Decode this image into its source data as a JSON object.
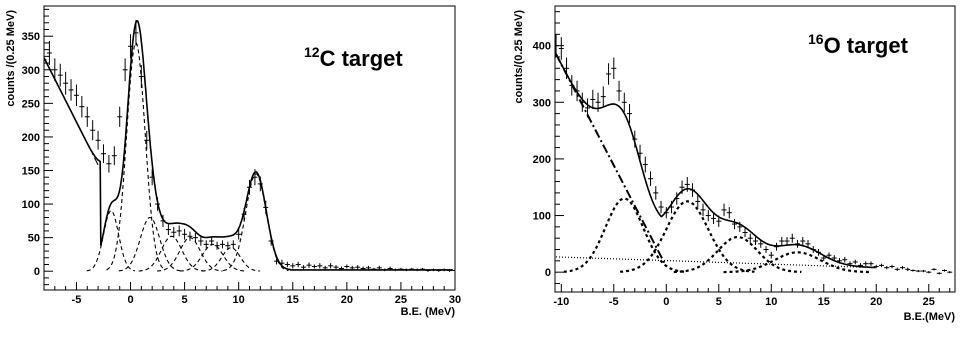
{
  "chart_data": [
    {
      "type": "line",
      "panel": "left",
      "annotation": {
        "superscript": "12",
        "text": "C target"
      },
      "xlabel": "B.E. (MeV)",
      "ylabel": "counts /(0.25 MeV)",
      "xlim": [
        -8,
        30
      ],
      "ylim": [
        -28,
        395
      ],
      "xticks": [
        -5,
        0,
        5,
        10,
        15,
        20,
        25,
        30
      ],
      "yticks": [
        0,
        50,
        100,
        150,
        200,
        250,
        300,
        350
      ],
      "data_points": {
        "x": [
          -8.0,
          -7.5,
          -7.0,
          -6.5,
          -6.0,
          -5.5,
          -5.0,
          -4.5,
          -4.0,
          -3.5,
          -3.0,
          -2.5,
          -2.0,
          -1.5,
          -1.0,
          -0.5,
          0.0,
          0.5,
          1.0,
          1.5,
          2.0,
          2.5,
          3.0,
          3.5,
          4.0,
          4.5,
          5.0,
          5.5,
          6.0,
          6.5,
          7.0,
          7.5,
          8.0,
          8.5,
          9.0,
          9.5,
          10.0,
          10.5,
          11.0,
          11.5,
          12.0,
          12.5,
          13.0,
          13.5,
          14.0,
          14.5,
          15.0,
          15.5,
          16.0,
          16.5,
          17.0,
          17.5,
          18.0,
          18.5,
          19.0,
          19.5,
          20.0,
          20.5,
          21.0,
          21.5,
          22.0,
          22.5,
          23.0,
          23.5,
          24.0,
          24.5,
          25.0,
          25.5,
          26.0,
          26.5,
          27.0,
          27.5,
          28.0,
          28.5,
          29.0,
          29.5,
          30.0
        ],
        "y": [
          315,
          325,
          300,
          292,
          280,
          270,
          262,
          245,
          230,
          210,
          195,
          175,
          160,
          172,
          230,
          300,
          335,
          355,
          290,
          195,
          140,
          100,
          75,
          62,
          58,
          60,
          55,
          52,
          50,
          45,
          40,
          45,
          38,
          40,
          38,
          40,
          55,
          85,
          125,
          140,
          130,
          95,
          45,
          15,
          12,
          10,
          8,
          10,
          6,
          9,
          7,
          8,
          5,
          8,
          6,
          4,
          7,
          5,
          6,
          4,
          5,
          3,
          5,
          2,
          4,
          2,
          3,
          2,
          3,
          2,
          3,
          1,
          2,
          1,
          2,
          1,
          1
        ],
        "errors": [
          18,
          18,
          17,
          17,
          17,
          16,
          16,
          16,
          15,
          15,
          14,
          14,
          13,
          14,
          15,
          17,
          18,
          19,
          17,
          14,
          12,
          10,
          9,
          8,
          8,
          8,
          8,
          7,
          7,
          7,
          6,
          7,
          6,
          6,
          6,
          6,
          8,
          9,
          11,
          12,
          11,
          10,
          7,
          5,
          5,
          4,
          4,
          4,
          3,
          4,
          3,
          4,
          3,
          4,
          3,
          3,
          3,
          3,
          3,
          3,
          3,
          2,
          3,
          2,
          3,
          2,
          2,
          2,
          2,
          2,
          2,
          2,
          2,
          2,
          2,
          2,
          2
        ]
      },
      "background": {
        "x0": -8,
        "y0": 318,
        "x1": -2.8,
        "y1": 152
      },
      "peaks": [
        {
          "center": -1.8,
          "amplitude": 90,
          "sigma": 0.7
        },
        {
          "center": 0.5,
          "amplitude": 340,
          "sigma": 0.85
        },
        {
          "center": 1.8,
          "amplitude": 80,
          "sigma": 0.9
        },
        {
          "center": 3.8,
          "amplitude": 52,
          "sigma": 0.95
        },
        {
          "center": 5.5,
          "amplitude": 50,
          "sigma": 0.95
        },
        {
          "center": 7.6,
          "amplitude": 40,
          "sigma": 0.95
        },
        {
          "center": 9.3,
          "amplitude": 35,
          "sigma": 0.85
        },
        {
          "center": 11.6,
          "amplitude": 145,
          "sigma": 0.95
        }
      ],
      "fit_tail": 2
    },
    {
      "type": "line",
      "panel": "right",
      "annotation": {
        "superscript": "16",
        "text": "O target"
      },
      "xlabel": "B.E.(MeV)",
      "ylabel": "counts/(0.25 MeV)",
      "xlim": [
        -10.6,
        27.5
      ],
      "ylim": [
        -35,
        470
      ],
      "xticks": [
        -10,
        -5,
        0,
        5,
        10,
        15,
        20,
        25
      ],
      "yticks": [
        0,
        100,
        200,
        300,
        400
      ],
      "data_points": {
        "x": [
          -10.5,
          -10.0,
          -9.5,
          -9.0,
          -8.5,
          -8.0,
          -7.5,
          -7.0,
          -6.5,
          -6.0,
          -5.5,
          -5.0,
          -4.5,
          -4.0,
          -3.5,
          -3.0,
          -2.5,
          -2.0,
          -1.5,
          -1.0,
          -0.5,
          0.0,
          0.5,
          1.0,
          1.5,
          2.0,
          2.5,
          3.0,
          3.5,
          4.0,
          4.5,
          5.0,
          5.5,
          6.0,
          6.5,
          7.0,
          7.5,
          8.0,
          8.5,
          9.0,
          9.5,
          10.0,
          10.5,
          11.0,
          11.5,
          12.0,
          12.5,
          13.0,
          13.5,
          14.0,
          14.5,
          15.0,
          15.5,
          16.0,
          16.5,
          17.0,
          17.5,
          18.0,
          18.5,
          19.0,
          19.5,
          20.0,
          20.5,
          21.0,
          21.5,
          22.0,
          22.5,
          23.0,
          23.5,
          24.0,
          24.5,
          25.0,
          25.5,
          26.0,
          26.5,
          27.0
        ],
        "y": [
          400,
          395,
          360,
          330,
          320,
          300,
          290,
          305,
          300,
          310,
          350,
          360,
          320,
          300,
          280,
          235,
          210,
          190,
          165,
          140,
          115,
          105,
          115,
          130,
          150,
          155,
          145,
          125,
          110,
          100,
          95,
          90,
          110,
          105,
          85,
          80,
          70,
          60,
          55,
          50,
          40,
          30,
          45,
          55,
          55,
          60,
          50,
          55,
          50,
          40,
          35,
          25,
          30,
          25,
          20,
          22,
          15,
          18,
          12,
          15,
          15,
          10,
          12,
          8,
          10,
          5,
          8,
          5,
          3,
          2,
          2,
          0,
          5,
          -2,
          3,
          0
        ],
        "errors": [
          20,
          20,
          19,
          18,
          18,
          17,
          17,
          17,
          17,
          18,
          19,
          19,
          18,
          17,
          17,
          15,
          15,
          14,
          13,
          12,
          11,
          10,
          11,
          11,
          12,
          13,
          12,
          11,
          11,
          10,
          10,
          10,
          11,
          10,
          9,
          9,
          8,
          8,
          7,
          7,
          6,
          6,
          7,
          7,
          7,
          8,
          7,
          7,
          7,
          6,
          6,
          5,
          5,
          5,
          5,
          5,
          4,
          4,
          4,
          4,
          4,
          3,
          3,
          3,
          3,
          3,
          3,
          3,
          2,
          2,
          2,
          2,
          2,
          2,
          2,
          2
        ]
      },
      "linear_background": {
        "x0": -10.5,
        "y0": 27,
        "x1": 20,
        "y1": 8
      },
      "quasi_free": {
        "x0": -10.5,
        "y0": 385,
        "x1": 0,
        "y1": 10
      },
      "peaks": [
        {
          "center": -4.0,
          "amplitude": 130,
          "sigma": 1.8
        },
        {
          "center": 2.0,
          "amplitude": 125,
          "sigma": 2.0
        },
        {
          "center": 6.8,
          "amplitude": 62,
          "sigma": 1.9
        },
        {
          "center": 12.5,
          "amplitude": 35,
          "sigma": 2.2
        }
      ],
      "fit_range": [
        -10.5,
        20
      ]
    }
  ]
}
